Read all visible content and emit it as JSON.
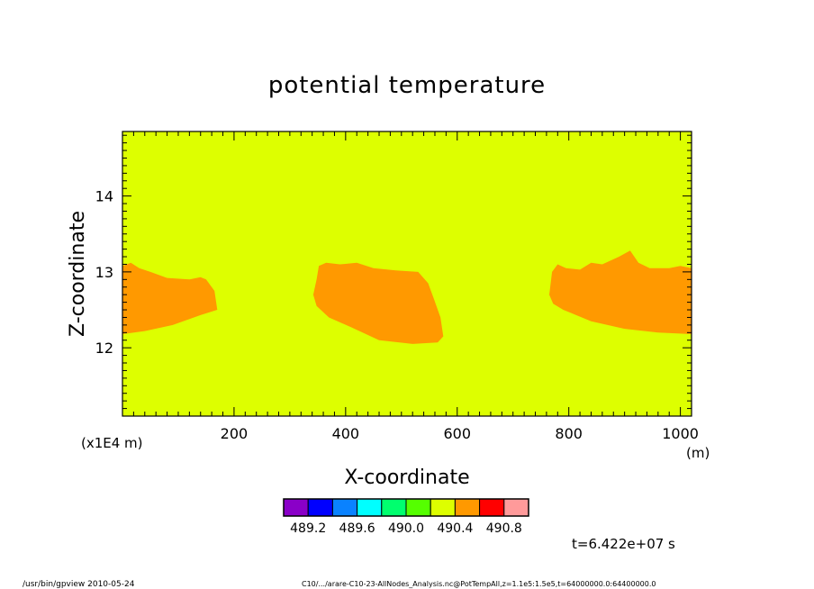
{
  "chart_data": {
    "type": "contour",
    "title": "potential temperature",
    "xlabel": "X-coordinate",
    "ylabel": "Z-coordinate",
    "x_units": "(m)",
    "y_units": "(x1E4 m)",
    "xlim": [
      0,
      1020
    ],
    "ylim": [
      11.1,
      14.85
    ],
    "x_ticks": [
      200,
      400,
      600,
      800,
      1000
    ],
    "y_ticks": [
      12,
      13,
      14
    ],
    "x_tick_labels": [
      "200",
      "400",
      "600",
      "800",
      "1000"
    ],
    "y_tick_labels": [
      "12",
      "13",
      "14"
    ],
    "background_level_color": "#ddff00",
    "region_color": "#ff9900",
    "regions": [
      {
        "name": "left-patch",
        "points": [
          [
            0,
            12.18
          ],
          [
            40,
            12.22
          ],
          [
            90,
            12.3
          ],
          [
            140,
            12.43
          ],
          [
            170,
            12.5
          ],
          [
            165,
            12.75
          ],
          [
            150,
            12.9
          ],
          [
            140,
            12.93
          ],
          [
            120,
            12.9
          ],
          [
            80,
            12.92
          ],
          [
            50,
            13.0
          ],
          [
            30,
            13.05
          ],
          [
            15,
            13.12
          ],
          [
            0,
            13.08
          ]
        ]
      },
      {
        "name": "center-patch",
        "points": [
          [
            342,
            12.7
          ],
          [
            348,
            12.55
          ],
          [
            370,
            12.4
          ],
          [
            410,
            12.27
          ],
          [
            460,
            12.1
          ],
          [
            520,
            12.05
          ],
          [
            565,
            12.07
          ],
          [
            575,
            12.15
          ],
          [
            570,
            12.4
          ],
          [
            558,
            12.65
          ],
          [
            548,
            12.85
          ],
          [
            530,
            13.0
          ],
          [
            490,
            13.02
          ],
          [
            450,
            13.05
          ],
          [
            420,
            13.12
          ],
          [
            390,
            13.1
          ],
          [
            365,
            13.12
          ],
          [
            352,
            13.08
          ],
          [
            348,
            12.9
          ]
        ]
      },
      {
        "name": "right-patch",
        "points": [
          [
            765,
            12.7
          ],
          [
            772,
            12.58
          ],
          [
            790,
            12.5
          ],
          [
            840,
            12.35
          ],
          [
            900,
            12.25
          ],
          [
            960,
            12.2
          ],
          [
            1020,
            12.18
          ],
          [
            1020,
            13.05
          ],
          [
            1000,
            13.08
          ],
          [
            980,
            13.05
          ],
          [
            945,
            13.05
          ],
          [
            925,
            13.12
          ],
          [
            910,
            13.28
          ],
          [
            890,
            13.2
          ],
          [
            860,
            13.1
          ],
          [
            840,
            13.12
          ],
          [
            820,
            13.03
          ],
          [
            795,
            13.05
          ],
          [
            780,
            13.1
          ],
          [
            770,
            13.0
          ]
        ]
      }
    ],
    "colorbar": {
      "colors": [
        "#8a00c8",
        "#0000ff",
        "#0a82ff",
        "#00ffff",
        "#00ff6e",
        "#55ff00",
        "#ddff00",
        "#ff9900",
        "#ff0000",
        "#ff9a9a"
      ],
      "labels": [
        "489.2",
        "489.6",
        "490.0",
        "490.4",
        "490.8"
      ]
    },
    "annotations": {
      "time": "t=6.422e+07 s",
      "footer_left": "/usr/bin/gpview   2010-05-24",
      "footer_right": "C10/.../arare-C10-23-AllNodes_Analysis.nc@PotTempAll,z=1.1e5:1.5e5,t=64000000.0:64400000.0"
    }
  }
}
